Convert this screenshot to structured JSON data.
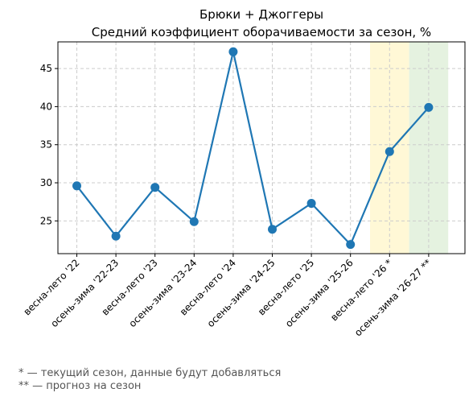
{
  "chart_data": {
    "type": "line",
    "title": [
      "Брюки + Джоггеры",
      "Средний коэффициент оборачиваемости за сезон, %"
    ],
    "xlabel": "",
    "ylabel": "",
    "categories": [
      "весна-лето '22",
      "осень-зима '22-23",
      "весна-лето '23",
      "осень-зима '23-24",
      "весна-лето '24",
      "осень-зима '24-25",
      "весна-лето '25",
      "осень-зима '25-26",
      "весна-лето '26 *",
      "осень-зима '26-27 **"
    ],
    "series": [
      {
        "values": [
          29.6,
          23.0,
          29.4,
          24.9,
          47.2,
          23.9,
          27.3,
          21.9,
          34.1,
          39.9
        ]
      }
    ],
    "ylim": [
      20.7,
      48.5
    ],
    "yticks": [
      25,
      30,
      35,
      40,
      45
    ],
    "grid": true,
    "highlights": [
      {
        "category_index": 8,
        "color": "#fff8d6"
      },
      {
        "category_index": 9,
        "color": "#e5f2e0"
      }
    ],
    "line_color": "#1f77b4"
  },
  "footnotes": [
    "* — текущий сезон, данные будут добавляться",
    "** — прогноз на сезон"
  ]
}
